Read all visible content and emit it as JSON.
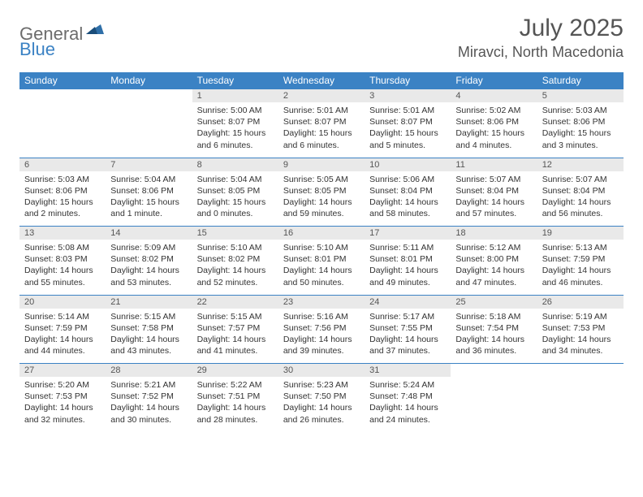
{
  "logo": {
    "word1": "General",
    "word2": "Blue"
  },
  "title": {
    "month": "July 2025",
    "location": "Miravci, North Macedonia"
  },
  "weekdays": [
    "Sunday",
    "Monday",
    "Tuesday",
    "Wednesday",
    "Thursday",
    "Friday",
    "Saturday"
  ],
  "colors": {
    "header_bg": "#3b82c4",
    "header_text": "#ffffff",
    "daynum_bg": "#e9e9e9",
    "border": "#3b82c4"
  },
  "weeks": [
    {
      "nums": [
        "",
        "",
        "1",
        "2",
        "3",
        "4",
        "5"
      ],
      "cells": [
        {
          "sunrise": "",
          "sunset": "",
          "daylight": ""
        },
        {
          "sunrise": "",
          "sunset": "",
          "daylight": ""
        },
        {
          "sunrise": "Sunrise: 5:00 AM",
          "sunset": "Sunset: 8:07 PM",
          "daylight": "Daylight: 15 hours and 6 minutes."
        },
        {
          "sunrise": "Sunrise: 5:01 AM",
          "sunset": "Sunset: 8:07 PM",
          "daylight": "Daylight: 15 hours and 6 minutes."
        },
        {
          "sunrise": "Sunrise: 5:01 AM",
          "sunset": "Sunset: 8:07 PM",
          "daylight": "Daylight: 15 hours and 5 minutes."
        },
        {
          "sunrise": "Sunrise: 5:02 AM",
          "sunset": "Sunset: 8:06 PM",
          "daylight": "Daylight: 15 hours and 4 minutes."
        },
        {
          "sunrise": "Sunrise: 5:03 AM",
          "sunset": "Sunset: 8:06 PM",
          "daylight": "Daylight: 15 hours and 3 minutes."
        }
      ]
    },
    {
      "nums": [
        "6",
        "7",
        "8",
        "9",
        "10",
        "11",
        "12"
      ],
      "cells": [
        {
          "sunrise": "Sunrise: 5:03 AM",
          "sunset": "Sunset: 8:06 PM",
          "daylight": "Daylight: 15 hours and 2 minutes."
        },
        {
          "sunrise": "Sunrise: 5:04 AM",
          "sunset": "Sunset: 8:06 PM",
          "daylight": "Daylight: 15 hours and 1 minute."
        },
        {
          "sunrise": "Sunrise: 5:04 AM",
          "sunset": "Sunset: 8:05 PM",
          "daylight": "Daylight: 15 hours and 0 minutes."
        },
        {
          "sunrise": "Sunrise: 5:05 AM",
          "sunset": "Sunset: 8:05 PM",
          "daylight": "Daylight: 14 hours and 59 minutes."
        },
        {
          "sunrise": "Sunrise: 5:06 AM",
          "sunset": "Sunset: 8:04 PM",
          "daylight": "Daylight: 14 hours and 58 minutes."
        },
        {
          "sunrise": "Sunrise: 5:07 AM",
          "sunset": "Sunset: 8:04 PM",
          "daylight": "Daylight: 14 hours and 57 minutes."
        },
        {
          "sunrise": "Sunrise: 5:07 AM",
          "sunset": "Sunset: 8:04 PM",
          "daylight": "Daylight: 14 hours and 56 minutes."
        }
      ]
    },
    {
      "nums": [
        "13",
        "14",
        "15",
        "16",
        "17",
        "18",
        "19"
      ],
      "cells": [
        {
          "sunrise": "Sunrise: 5:08 AM",
          "sunset": "Sunset: 8:03 PM",
          "daylight": "Daylight: 14 hours and 55 minutes."
        },
        {
          "sunrise": "Sunrise: 5:09 AM",
          "sunset": "Sunset: 8:02 PM",
          "daylight": "Daylight: 14 hours and 53 minutes."
        },
        {
          "sunrise": "Sunrise: 5:10 AM",
          "sunset": "Sunset: 8:02 PM",
          "daylight": "Daylight: 14 hours and 52 minutes."
        },
        {
          "sunrise": "Sunrise: 5:10 AM",
          "sunset": "Sunset: 8:01 PM",
          "daylight": "Daylight: 14 hours and 50 minutes."
        },
        {
          "sunrise": "Sunrise: 5:11 AM",
          "sunset": "Sunset: 8:01 PM",
          "daylight": "Daylight: 14 hours and 49 minutes."
        },
        {
          "sunrise": "Sunrise: 5:12 AM",
          "sunset": "Sunset: 8:00 PM",
          "daylight": "Daylight: 14 hours and 47 minutes."
        },
        {
          "sunrise": "Sunrise: 5:13 AM",
          "sunset": "Sunset: 7:59 PM",
          "daylight": "Daylight: 14 hours and 46 minutes."
        }
      ]
    },
    {
      "nums": [
        "20",
        "21",
        "22",
        "23",
        "24",
        "25",
        "26"
      ],
      "cells": [
        {
          "sunrise": "Sunrise: 5:14 AM",
          "sunset": "Sunset: 7:59 PM",
          "daylight": "Daylight: 14 hours and 44 minutes."
        },
        {
          "sunrise": "Sunrise: 5:15 AM",
          "sunset": "Sunset: 7:58 PM",
          "daylight": "Daylight: 14 hours and 43 minutes."
        },
        {
          "sunrise": "Sunrise: 5:15 AM",
          "sunset": "Sunset: 7:57 PM",
          "daylight": "Daylight: 14 hours and 41 minutes."
        },
        {
          "sunrise": "Sunrise: 5:16 AM",
          "sunset": "Sunset: 7:56 PM",
          "daylight": "Daylight: 14 hours and 39 minutes."
        },
        {
          "sunrise": "Sunrise: 5:17 AM",
          "sunset": "Sunset: 7:55 PM",
          "daylight": "Daylight: 14 hours and 37 minutes."
        },
        {
          "sunrise": "Sunrise: 5:18 AM",
          "sunset": "Sunset: 7:54 PM",
          "daylight": "Daylight: 14 hours and 36 minutes."
        },
        {
          "sunrise": "Sunrise: 5:19 AM",
          "sunset": "Sunset: 7:53 PM",
          "daylight": "Daylight: 14 hours and 34 minutes."
        }
      ]
    },
    {
      "nums": [
        "27",
        "28",
        "29",
        "30",
        "31",
        "",
        ""
      ],
      "cells": [
        {
          "sunrise": "Sunrise: 5:20 AM",
          "sunset": "Sunset: 7:53 PM",
          "daylight": "Daylight: 14 hours and 32 minutes."
        },
        {
          "sunrise": "Sunrise: 5:21 AM",
          "sunset": "Sunset: 7:52 PM",
          "daylight": "Daylight: 14 hours and 30 minutes."
        },
        {
          "sunrise": "Sunrise: 5:22 AM",
          "sunset": "Sunset: 7:51 PM",
          "daylight": "Daylight: 14 hours and 28 minutes."
        },
        {
          "sunrise": "Sunrise: 5:23 AM",
          "sunset": "Sunset: 7:50 PM",
          "daylight": "Daylight: 14 hours and 26 minutes."
        },
        {
          "sunrise": "Sunrise: 5:24 AM",
          "sunset": "Sunset: 7:48 PM",
          "daylight": "Daylight: 14 hours and 24 minutes."
        },
        {
          "sunrise": "",
          "sunset": "",
          "daylight": ""
        },
        {
          "sunrise": "",
          "sunset": "",
          "daylight": ""
        }
      ]
    }
  ]
}
